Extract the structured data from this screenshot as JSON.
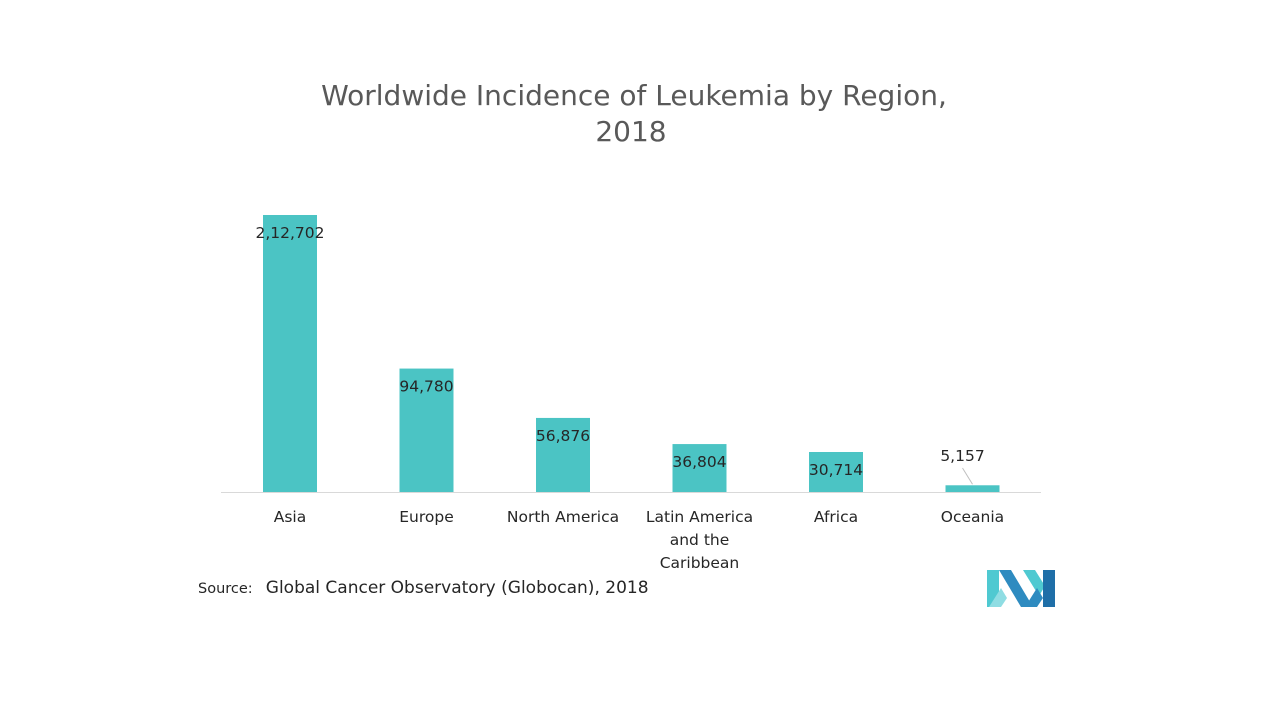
{
  "chart_data": {
    "type": "bar",
    "title": "Worldwide Incidence of Leukemia by Region, 2018",
    "title_lines": [
      "Worldwide Incidence of Leukemia by Region,",
      "2018"
    ],
    "categories": [
      "Asia",
      "Europe",
      "North America",
      "Latin America and the Caribbean",
      "Africa",
      "Oceania"
    ],
    "category_lines": [
      [
        "Asia"
      ],
      [
        "Europe"
      ],
      [
        "North America"
      ],
      [
        "Latin America",
        "and the",
        "Caribbean"
      ],
      [
        "Africa"
      ],
      [
        "Oceania"
      ]
    ],
    "values": [
      212702,
      94780,
      56876,
      36804,
      30714,
      5157
    ],
    "value_labels": [
      "2,12,702",
      "94,780",
      "56,876",
      "36,804",
      "30,714",
      "5,157"
    ],
    "xlabel": "",
    "ylabel": "",
    "ylim": [
      0,
      212702
    ],
    "grid": false,
    "legend": "none",
    "bar_color": "#4BC4C4",
    "axis_color": "#D9D9D9"
  },
  "source": {
    "label": "Source:",
    "text": "Global Cancer Observatory (Globocan), 2018"
  },
  "logo": {
    "icon": "mordor-intelligence-logo-icon",
    "colors": [
      "#2E8BC0",
      "#4FC9D1",
      "#1F6FA8"
    ]
  }
}
